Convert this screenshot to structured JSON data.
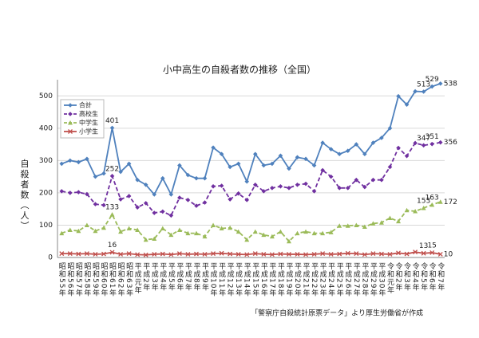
{
  "chart_data": {
    "type": "line",
    "title": "小中高生の自殺者数の推移（全国）",
    "y_label": "自殺者数（人）",
    "source": "「警察庁自殺統計原票データ」より厚生労働省が作成",
    "categories": [
      "昭和55年",
      "昭和56年",
      "昭和57年",
      "昭和58年",
      "昭和59年",
      "昭和60年",
      "昭和61年",
      "昭和62年",
      "昭和63年",
      "平成元年",
      "平成2年",
      "平成3年",
      "平成4年",
      "平成5年",
      "平成6年",
      "平成7年",
      "平成8年",
      "平成9年",
      "平成10年",
      "平成11年",
      "平成12年",
      "平成13年",
      "平成14年",
      "平成15年",
      "平成16年",
      "平成17年",
      "平成18年",
      "平成19年",
      "平成20年",
      "平成21年",
      "平成22年",
      "平成23年",
      "平成24年",
      "平成25年",
      "平成26年",
      "平成27年",
      "平成28年",
      "平成29年",
      "平成30年",
      "令和元年",
      "令和2年",
      "令和3年",
      "令和4年",
      "令和5年",
      "令和6年",
      "令和7年"
    ],
    "ylim": [
      0,
      550
    ],
    "yticks": [
      0,
      100,
      200,
      300,
      400,
      500
    ],
    "grid": true,
    "series": [
      {
        "name": "合計",
        "color": "#4f81bd",
        "dash": false,
        "marker": "diamond",
        "values": [
          290,
          300,
          295,
          305,
          250,
          260,
          401,
          265,
          290,
          240,
          225,
          195,
          245,
          195,
          285,
          255,
          245,
          245,
          340,
          320,
          280,
          290,
          235,
          320,
          285,
          290,
          315,
          275,
          310,
          305,
          285,
          355,
          335,
          320,
          330,
          350,
          320,
          355,
          370,
          400,
          499,
          473,
          514,
          513,
          529,
          538
        ],
        "value_labels": [
          null,
          null,
          null,
          null,
          null,
          null,
          "401",
          null,
          null,
          null,
          null,
          null,
          null,
          null,
          null,
          null,
          null,
          null,
          null,
          null,
          null,
          null,
          null,
          null,
          null,
          null,
          null,
          null,
          null,
          null,
          null,
          null,
          null,
          null,
          null,
          null,
          null,
          null,
          null,
          null,
          null,
          null,
          null,
          "513",
          "529",
          "538"
        ]
      },
      {
        "name": "高校生",
        "color": "#7030a0",
        "dash": true,
        "marker": "diamond",
        "values": [
          205,
          200,
          202,
          196,
          165,
          162,
          252,
          180,
          190,
          155,
          168,
          138,
          142,
          130,
          185,
          178,
          160,
          170,
          220,
          222,
          180,
          198,
          178,
          225,
          205,
          215,
          220,
          215,
          225,
          228,
          205,
          270,
          250,
          215,
          215,
          240,
          218,
          240,
          240,
          280,
          339,
          314,
          354,
          347,
          351,
          356
        ],
        "value_labels": [
          null,
          null,
          null,
          null,
          null,
          null,
          "252",
          null,
          null,
          null,
          null,
          null,
          null,
          null,
          null,
          null,
          null,
          null,
          null,
          null,
          null,
          null,
          null,
          null,
          null,
          null,
          null,
          null,
          null,
          null,
          null,
          null,
          null,
          null,
          null,
          null,
          null,
          null,
          null,
          null,
          null,
          null,
          null,
          "347",
          "351",
          "356"
        ]
      },
      {
        "name": "中学生",
        "color": "#9bbb59",
        "dash": true,
        "marker": "triangle",
        "values": [
          75,
          85,
          82,
          100,
          82,
          92,
          133,
          80,
          90,
          85,
          55,
          58,
          90,
          70,
          85,
          75,
          75,
          65,
          100,
          90,
          92,
          80,
          55,
          80,
          70,
          65,
          80,
          50,
          75,
          80,
          75,
          75,
          78,
          98,
          98,
          100,
          95,
          105,
          108,
          122,
          112,
          146,
          143,
          153,
          163,
          172
        ],
        "value_labels": [
          null,
          null,
          null,
          null,
          null,
          null,
          "133",
          null,
          null,
          null,
          null,
          null,
          null,
          null,
          null,
          null,
          null,
          null,
          null,
          null,
          null,
          null,
          null,
          null,
          null,
          null,
          null,
          null,
          null,
          null,
          null,
          null,
          null,
          null,
          null,
          null,
          null,
          null,
          null,
          null,
          null,
          null,
          null,
          "153",
          "163",
          "172"
        ]
      },
      {
        "name": "小学生",
        "color": "#c0504d",
        "dash": false,
        "marker": "x",
        "values": [
          12,
          12,
          11,
          12,
          10,
          11,
          16,
          10,
          12,
          9,
          8,
          10,
          11,
          9,
          12,
          10,
          11,
          10,
          12,
          13,
          11,
          10,
          9,
          12,
          10,
          9,
          11,
          10,
          10,
          9,
          10,
          12,
          10,
          11,
          13,
          12,
          9,
          12,
          11,
          10,
          14,
          11,
          17,
          13,
          15,
          10
        ],
        "value_labels": [
          null,
          null,
          null,
          null,
          null,
          null,
          "16",
          null,
          null,
          null,
          null,
          null,
          null,
          null,
          null,
          null,
          null,
          null,
          null,
          null,
          null,
          null,
          null,
          null,
          null,
          null,
          null,
          null,
          null,
          null,
          null,
          null,
          null,
          null,
          null,
          null,
          null,
          null,
          null,
          null,
          null,
          null,
          null,
          "13",
          "15",
          "10"
        ]
      }
    ]
  }
}
